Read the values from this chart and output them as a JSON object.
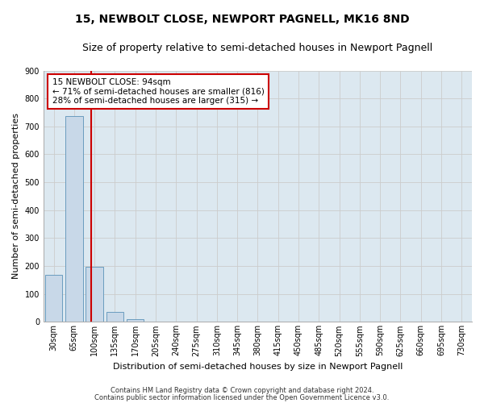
{
  "title": "15, NEWBOLT CLOSE, NEWPORT PAGNELL, MK16 8ND",
  "subtitle": "Size of property relative to semi-detached houses in Newport Pagnell",
  "xlabel": "Distribution of semi-detached houses by size in Newport Pagnell",
  "ylabel": "Number of semi-detached properties",
  "footnote1": "Contains HM Land Registry data © Crown copyright and database right 2024.",
  "footnote2": "Contains public sector information licensed under the Open Government Licence v3.0.",
  "bin_labels": [
    "30sqm",
    "65sqm",
    "100sqm",
    "135sqm",
    "170sqm",
    "205sqm",
    "240sqm",
    "275sqm",
    "310sqm",
    "345sqm",
    "380sqm",
    "415sqm",
    "450sqm",
    "485sqm",
    "520sqm",
    "555sqm",
    "590sqm",
    "625sqm",
    "660sqm",
    "695sqm",
    "730sqm"
  ],
  "bar_values": [
    168,
    738,
    197,
    37,
    10,
    0,
    0,
    0,
    0,
    0,
    0,
    0,
    0,
    0,
    0,
    0,
    0,
    0,
    0,
    0,
    0
  ],
  "bar_color": "#c8d8e8",
  "bar_edge_color": "#6a9cbf",
  "highlight_line_value": 94,
  "highlight_color": "#cc0000",
  "annotation_text": "15 NEWBOLT CLOSE: 94sqm\n← 71% of semi-detached houses are smaller (816)\n28% of semi-detached houses are larger (315) →",
  "ylim": [
    0,
    900
  ],
  "yticks": [
    0,
    100,
    200,
    300,
    400,
    500,
    600,
    700,
    800,
    900
  ],
  "grid_color": "#cccccc",
  "bg_color": "#dce8f0",
  "title_fontsize": 10,
  "subtitle_fontsize": 9,
  "ylabel_fontsize": 8,
  "xlabel_fontsize": 8,
  "tick_fontsize": 7,
  "annot_fontsize": 7.5,
  "footnote_fontsize": 6
}
